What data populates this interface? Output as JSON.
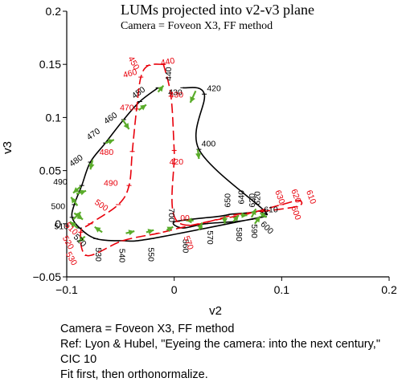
{
  "chart_data": {
    "type": "line",
    "title": "LUMs projected into v2-v3 plane",
    "subtitle": "Camera = Foveon X3, FF method",
    "xlabel": "v2",
    "ylabel": "v3",
    "xlim": [
      -0.1,
      0.2
    ],
    "ylim": [
      -0.05,
      0.2
    ],
    "xticks": [
      "−0.1",
      "0",
      "0.1",
      "0.2"
    ],
    "yticks": [
      "−0.05",
      "0",
      "0.05",
      "0.1",
      "0.15",
      "0.2"
    ],
    "grid": false,
    "series": [
      {
        "color": "#000000",
        "dash": "solid",
        "points": [
          {
            "label": "430",
            "x": 0.008,
            "y": 0.128
          },
          {
            "label": "420",
            "x": 0.028,
            "y": 0.122
          },
          {
            "label": "400",
            "x": 0.023,
            "y": 0.07
          },
          {
            "label": "610",
            "x": 0.083,
            "y": 0.013
          },
          {
            "label": "620",
            "x": 0.079,
            "y": 0.012
          },
          {
            "label": "630",
            "x": 0.074,
            "y": 0.011
          },
          {
            "label": "640",
            "x": 0.066,
            "y": 0.01
          },
          {
            "label": "650",
            "x": 0.053,
            "y": 0.009
          },
          {
            "label": "660",
            "x": 0.042,
            "y": 0.007
          },
          {
            "label": "700",
            "x": 0.001,
            "y": 0.002
          },
          {
            "label": "560",
            "x": 0.008,
            "y": -0.004
          },
          {
            "label": "570",
            "x": 0.029,
            "y": 0.0
          },
          {
            "label": "580",
            "x": 0.057,
            "y": 0.002
          },
          {
            "label": "590",
            "x": 0.071,
            "y": 0.004
          },
          {
            "label": "600",
            "x": 0.08,
            "y": 0.006
          },
          {
            "label": "550",
            "x": -0.021,
            "y": -0.014
          },
          {
            "label": "540",
            "x": -0.048,
            "y": -0.016
          },
          {
            "label": "530",
            "x": -0.073,
            "y": -0.014
          },
          {
            "label": "520",
            "x": -0.088,
            "y": -0.004
          },
          {
            "label": "510",
            "x": -0.095,
            "y": 0.006
          },
          {
            "label": "500",
            "x": -0.093,
            "y": 0.018
          },
          {
            "label": "490",
            "x": -0.086,
            "y": 0.036
          },
          {
            "label": "480",
            "x": -0.078,
            "y": 0.058
          },
          {
            "label": "470",
            "x": -0.064,
            "y": 0.076
          },
          {
            "label": "460",
            "x": -0.047,
            "y": 0.098
          },
          {
            "label": "450",
            "x": -0.032,
            "y": 0.115
          },
          {
            "label": "440",
            "x": -0.015,
            "y": 0.128
          }
        ]
      },
      {
        "color": "#e8000b",
        "dash": "12,5",
        "points": [
          {
            "label": "440",
            "x": -0.01,
            "y": 0.15
          },
          {
            "label": "450",
            "x": -0.024,
            "y": 0.149
          },
          {
            "label": "460",
            "x": -0.031,
            "y": 0.138
          },
          {
            "label": "470",
            "x": -0.035,
            "y": 0.108
          },
          {
            "label": "480",
            "x": -0.039,
            "y": 0.068
          },
          {
            "label": "490",
            "x": -0.042,
            "y": 0.036
          },
          {
            "label": "500",
            "x": -0.052,
            "y": 0.018
          },
          {
            "label": "510",
            "x": -0.078,
            "y": 0.0
          },
          {
            "label": "520",
            "x": -0.087,
            "y": -0.008
          },
          {
            "label": "530",
            "x": -0.081,
            "y": -0.03
          },
          {
            "label": "540",
            "x": -0.048,
            "y": -0.016
          },
          {
            "label": "560",
            "x": -0.015,
            "y": -0.009
          },
          {
            "label": "570",
            "x": 0.005,
            "y": -0.004
          },
          {
            "label": "580",
            "x": 0.041,
            "y": 0.004
          },
          {
            "label": "590",
            "x": 0.067,
            "y": 0.009
          },
          {
            "label": "600",
            "x": 0.1,
            "y": 0.018
          },
          {
            "label": "610",
            "x": 0.116,
            "y": 0.022
          },
          {
            "label": "620",
            "x": 0.113,
            "y": 0.016
          },
          {
            "label": "630",
            "x": 0.06,
            "y": 0.009
          },
          {
            "label": "700",
            "x": 0.003,
            "y": 0.002
          },
          {
            "label": "420",
            "x": 0.0,
            "y": 0.069
          },
          {
            "label": "430",
            "x": -0.003,
            "y": 0.12
          },
          {
            "label": "440b",
            "x": -0.01,
            "y": 0.15
          }
        ]
      }
    ],
    "point_labels": [
      {
        "text": "440",
        "x": -0.005,
        "y": 0.141,
        "color": "#000000",
        "rot": 90
      },
      {
        "text": "450",
        "x": -0.033,
        "y": 0.123,
        "color": "#000000",
        "rot": 35
      },
      {
        "text": "460",
        "x": -0.059,
        "y": 0.099,
        "color": "#000000",
        "rot": 35
      },
      {
        "text": "470",
        "x": -0.075,
        "y": 0.084,
        "color": "#000000",
        "rot": 35
      },
      {
        "text": "480",
        "x": -0.091,
        "y": 0.059,
        "color": "#000000",
        "rot": 35
      },
      {
        "text": "490",
        "x": -0.106,
        "y": 0.039,
        "color": "#000000",
        "rot": 0
      },
      {
        "text": "500",
        "x": -0.108,
        "y": 0.016,
        "color": "#000000",
        "rot": 0
      },
      {
        "text": "510",
        "x": -0.105,
        "y": -0.003,
        "color": "#000000",
        "rot": 0
      },
      {
        "text": "520",
        "x": -0.088,
        "y": -0.016,
        "color": "#000000",
        "rot": -45
      },
      {
        "text": "530",
        "x": -0.071,
        "y": -0.029,
        "color": "#000000",
        "rot": -90
      },
      {
        "text": "540",
        "x": -0.049,
        "y": -0.03,
        "color": "#000000",
        "rot": -90
      },
      {
        "text": "550",
        "x": -0.022,
        "y": -0.029,
        "color": "#000000",
        "rot": -90
      },
      {
        "text": "560",
        "x": 0.01,
        "y": -0.021,
        "color": "#000000",
        "rot": -90
      },
      {
        "text": "570",
        "x": 0.033,
        "y": -0.013,
        "color": "#000000",
        "rot": -90
      },
      {
        "text": "580",
        "x": 0.06,
        "y": -0.01,
        "color": "#000000",
        "rot": -90
      },
      {
        "text": "590",
        "x": 0.074,
        "y": -0.007,
        "color": "#000000",
        "rot": -90
      },
      {
        "text": "600",
        "x": 0.086,
        "y": -0.004,
        "color": "#000000",
        "rot": -45
      },
      {
        "text": "610",
        "x": 0.09,
        "y": 0.013,
        "color": "#000000",
        "rot": 0
      },
      {
        "text": "620",
        "x": 0.078,
        "y": 0.024,
        "color": "#000000",
        "rot": 90
      },
      {
        "text": "630",
        "x": 0.073,
        "y": 0.022,
        "color": "#000000",
        "rot": 90
      },
      {
        "text": "640",
        "x": 0.063,
        "y": 0.025,
        "color": "#000000",
        "rot": 90
      },
      {
        "text": "650",
        "x": 0.05,
        "y": 0.022,
        "color": "#000000",
        "rot": 90
      },
      {
        "text": "700",
        "x": -0.003,
        "y": 0.008,
        "color": "#000000",
        "rot": -90
      },
      {
        "text": "400",
        "x": 0.032,
        "y": 0.075,
        "color": "#000000",
        "rot": 0
      },
      {
        "text": "420",
        "x": 0.037,
        "y": 0.127,
        "color": "#000000",
        "rot": 0
      },
      {
        "text": "430",
        "x": 0.001,
        "y": 0.123,
        "color": "#000000",
        "rot": 0
      },
      {
        "text": "440",
        "x": -0.006,
        "y": 0.152,
        "color": "#e8000b",
        "rot": 10
      },
      {
        "text": "450",
        "x": -0.038,
        "y": 0.151,
        "color": "#e8000b",
        "rot": -60
      },
      {
        "text": "460",
        "x": -0.041,
        "y": 0.141,
        "color": "#e8000b",
        "rot": 15
      },
      {
        "text": "470",
        "x": -0.044,
        "y": 0.109,
        "color": "#e8000b",
        "rot": 0
      },
      {
        "text": "480",
        "x": -0.063,
        "y": 0.067,
        "color": "#e8000b",
        "rot": 0
      },
      {
        "text": "490",
        "x": -0.059,
        "y": 0.038,
        "color": "#e8000b",
        "rot": 0
      },
      {
        "text": "500",
        "x": -0.068,
        "y": 0.017,
        "color": "#e8000b",
        "rot": -35
      },
      {
        "text": "510",
        "x": -0.096,
        "y": -0.005,
        "color": "#e8000b",
        "rot": -45
      },
      {
        "text": "520",
        "x": -0.099,
        "y": -0.018,
        "color": "#e8000b",
        "rot": -60
      },
      {
        "text": "530",
        "x": -0.096,
        "y": -0.033,
        "color": "#e8000b",
        "rot": -60
      },
      {
        "text": "420",
        "x": 0.002,
        "y": 0.058,
        "color": "#e8000b",
        "rot": 0
      },
      {
        "text": "430",
        "x": 0.002,
        "y": 0.121,
        "color": "#e8000b",
        "rot": 0
      },
      {
        "text": "570",
        "x": 0.013,
        "y": -0.018,
        "color": "#e8000b",
        "rot": -70
      },
      {
        "text": "600",
        "x": 0.113,
        "y": 0.01,
        "color": "#e8000b",
        "rot": -70
      },
      {
        "text": "610",
        "x": 0.127,
        "y": 0.025,
        "color": "#e8000b",
        "rot": -70
      },
      {
        "text": "620",
        "x": 0.113,
        "y": 0.026,
        "color": "#e8000b",
        "rot": -70
      },
      {
        "text": "630",
        "x": 0.098,
        "y": 0.025,
        "color": "#e8000b",
        "rot": -70
      },
      {
        "text": "00",
        "x": 0.01,
        "y": 0.005,
        "color": "#e8000b",
        "rot": 0
      }
    ],
    "arrows": {
      "color": "#5aac2a",
      "items": [
        {
          "x": 0.02,
          "y": 0.125,
          "dx": -0.005,
          "dy": -0.011
        },
        {
          "x": -0.015,
          "y": 0.124,
          "dx": 0.005,
          "dy": 0.006
        },
        {
          "x": -0.033,
          "y": 0.107,
          "dx": 0.007,
          "dy": 0.005
        },
        {
          "x": -0.048,
          "y": 0.098,
          "dx": 0.006,
          "dy": -0.009
        },
        {
          "x": -0.064,
          "y": 0.076,
          "dx": 0.008,
          "dy": 0.003
        },
        {
          "x": -0.076,
          "y": 0.06,
          "dx": -0.002,
          "dy": -0.009
        },
        {
          "x": -0.087,
          "y": 0.035,
          "dx": -0.007,
          "dy": -0.006
        },
        {
          "x": -0.091,
          "y": 0.028,
          "dx": 0.009,
          "dy": 0.003
        },
        {
          "x": -0.09,
          "y": 0.017,
          "dx": -0.006,
          "dy": 0.008
        },
        {
          "x": -0.093,
          "y": 0.01,
          "dx": 0.008,
          "dy": -0.006
        },
        {
          "x": -0.094,
          "y": 0.004,
          "dx": 0.007,
          "dy": 0.007
        },
        {
          "x": -0.09,
          "y": -0.004,
          "dx": -0.007,
          "dy": 0.006
        },
        {
          "x": -0.083,
          "y": -0.012,
          "dx": -0.006,
          "dy": -0.005
        },
        {
          "x": -0.067,
          "y": -0.008,
          "dx": -0.007,
          "dy": 0.005
        },
        {
          "x": -0.045,
          "y": -0.009,
          "dx": 0.008,
          "dy": 0.002
        },
        {
          "x": -0.026,
          "y": -0.008,
          "dx": 0.007,
          "dy": 0.002
        },
        {
          "x": -0.007,
          "y": -0.006,
          "dx": 0.006,
          "dy": 0.003
        },
        {
          "x": 0.022,
          "y": 0.07,
          "dx": 0.001,
          "dy": -0.009
        },
        {
          "x": 0.018,
          "y": 0.003,
          "dx": -0.007,
          "dy": 0.0
        },
        {
          "x": 0.023,
          "y": -0.006,
          "dx": 0.003,
          "dy": 0.007
        },
        {
          "x": 0.047,
          "y": 0.007,
          "dx": 0.0,
          "dy": -0.007
        },
        {
          "x": 0.055,
          "y": 0.002,
          "dx": 0.005,
          "dy": 0.006
        },
        {
          "x": 0.062,
          "y": 0.008,
          "dx": 0.006,
          "dy": 0.0
        },
        {
          "x": 0.072,
          "y": 0.006,
          "dx": 0.004,
          "dy": 0.008
        },
        {
          "x": 0.075,
          "y": 0.0,
          "dx": 0.005,
          "dy": 0.007
        },
        {
          "x": 0.08,
          "y": 0.01,
          "dx": 0.006,
          "dy": -0.004
        }
      ]
    }
  },
  "caption": {
    "line1": "Camera = Foveon X3, FF method",
    "line2": "Ref: Lyon & Hubel, \"Eyeing the camera: into the next century,\" CIC 10",
    "line3": "Fit first, then orthonormalize."
  }
}
